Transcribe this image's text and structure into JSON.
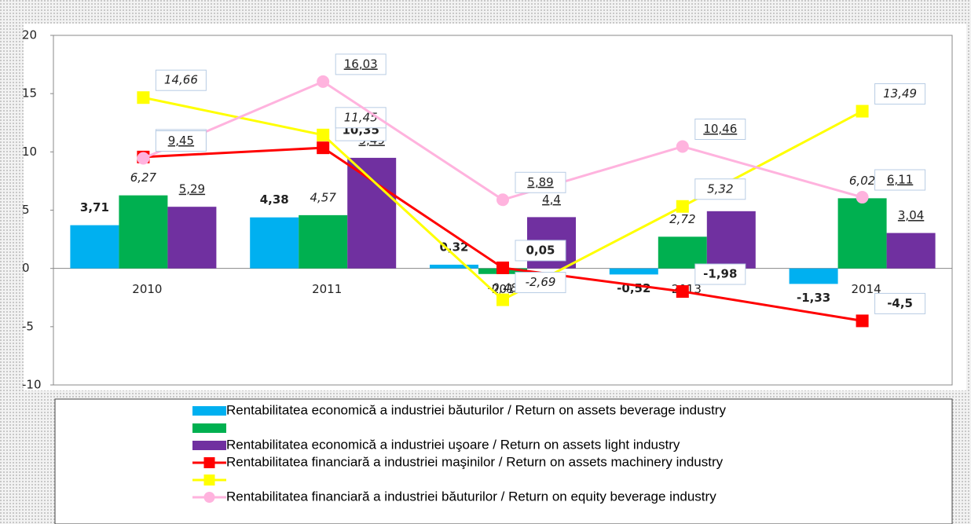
{
  "chart_data": {
    "type": "bar",
    "categories": [
      "2010",
      "2011",
      "2012",
      "2013",
      "2014"
    ],
    "ylim": [
      -10,
      20
    ],
    "yticks": [
      -10,
      -5,
      0,
      5,
      10,
      15,
      20
    ],
    "series": [
      {
        "name": "Rentabilitatea economică a industriei băuturilor / Return on assets beverage industry",
        "type": "bar",
        "color": "#00b0f0",
        "values": [
          3.71,
          4.38,
          0.32,
          -0.52,
          -1.33
        ],
        "value_labels": [
          "3,71",
          "4,38",
          "0,32",
          "-0,52",
          "-1,33"
        ],
        "label_style": "bold"
      },
      {
        "type": "bar",
        "color": "#00b050",
        "values": [
          6.27,
          4.57,
          -0.48,
          2.72,
          6.02
        ],
        "value_labels": [
          "6,27",
          "4,57",
          "-0,48",
          "2,72",
          "6,02"
        ],
        "label_style": "italic"
      },
      {
        "name": "Rentabilitatea economică a industriei uşoare / Return on assets light industry",
        "type": "bar",
        "color": "#7030a0",
        "values": [
          5.29,
          9.49,
          4.4,
          4.91,
          3.04
        ],
        "value_labels": [
          "5,29",
          "9,49",
          "4,4",
          "4,91",
          "3,04"
        ],
        "label_style": "underline"
      },
      {
        "name": "Rentabilitatea financiară  a industriei maşinilor / Return on assets machinery industry",
        "type": "line",
        "color": "#ff0000",
        "values": [
          9.56,
          10.35,
          0.05,
          -1.98,
          -4.5
        ],
        "value_labels": [
          "9,56",
          "10,35",
          "0,05",
          "-1,98",
          "-4,5"
        ],
        "label_style": "bold"
      },
      {
        "type": "line",
        "color": "#ffff00",
        "values": [
          14.66,
          11.45,
          -2.69,
          5.32,
          13.49
        ],
        "value_labels": [
          "14,66",
          "11,45",
          "-2,69",
          "5,32",
          "13,49"
        ],
        "label_style": "italic"
      },
      {
        "name": "Rentabilitatea financiară  a industriei băuturilor / Return on equity beverage industry",
        "type": "line",
        "color": "#ffb3de",
        "values": [
          9.45,
          16.03,
          5.89,
          10.46,
          6.11
        ],
        "value_labels": [
          "9,45",
          "16,03",
          "5,89",
          "10,46",
          "6,11"
        ],
        "label_style": "underline"
      }
    ]
  }
}
